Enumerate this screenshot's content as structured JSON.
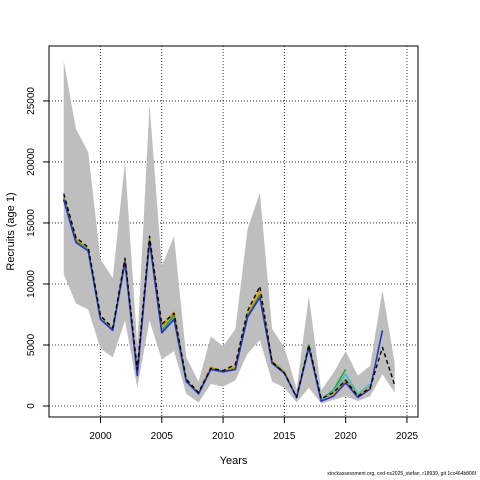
{
  "chart_data": {
    "type": "line",
    "xlabel": "Years",
    "ylabel": "Recruits (age 1)",
    "xlim": [
      1995.8,
      2025.9
    ],
    "ylim": [
      -900,
      29500
    ],
    "x_ticks": [
      2000,
      2005,
      2010,
      2015,
      2020,
      2025
    ],
    "y_ticks": [
      0,
      5000,
      10000,
      15000,
      20000,
      25000
    ],
    "grid": true,
    "grid_style": "dotted",
    "legend": "none",
    "colors": {
      "band": "#bebebe",
      "black": "#000000",
      "orange": "#e69f00",
      "olive": "#9a9a28",
      "green": "#2ca02c",
      "cyan": "#3fc0d8",
      "blue": "#3030c0"
    },
    "band": {
      "x": [
        1997,
        1998,
        1999,
        2000,
        2001,
        2002,
        2003,
        2004,
        2005,
        2006,
        2007,
        2008,
        2009,
        2010,
        2011,
        2012,
        2013,
        2014,
        2015,
        2016,
        2017,
        2018,
        2019,
        2020,
        2021,
        2022,
        2023,
        2024
      ],
      "upper": [
        28300,
        22700,
        20800,
        12000,
        10500,
        20000,
        5000,
        24700,
        11500,
        13900,
        4000,
        2000,
        5700,
        4900,
        6300,
        14500,
        17500,
        6300,
        4800,
        1400,
        9000,
        1300,
        2700,
        4500,
        2500,
        3300,
        9500,
        3500
      ],
      "lower": [
        10800,
        8400,
        7900,
        4700,
        4000,
        7000,
        1500,
        7000,
        3800,
        4500,
        1000,
        300,
        1800,
        1600,
        2100,
        4300,
        5400,
        2000,
        1500,
        300,
        1500,
        200,
        500,
        800,
        400,
        800,
        2600,
        1100
      ]
    },
    "series": [
      {
        "color": "black",
        "style": "dashed",
        "x": [
          1997,
          1998,
          1999,
          2000,
          2001,
          2002,
          2003,
          2004,
          2005,
          2006,
          2007,
          2008,
          2009,
          2010,
          2011,
          2012,
          2013,
          2014,
          2015,
          2016,
          2017,
          2018,
          2019,
          2020,
          2021,
          2022,
          2023,
          2024
        ],
        "values": [
          17400,
          13800,
          13000,
          7400,
          6400,
          12100,
          3000,
          13900,
          6700,
          7600,
          2200,
          1100,
          3100,
          2900,
          3400,
          7800,
          9800,
          3600,
          2700,
          700,
          5000,
          600,
          1100,
          2100,
          800,
          1500,
          4800,
          1700
        ]
      },
      {
        "color": "orange",
        "style": "solid",
        "x": [
          1997,
          1998,
          1999,
          2000,
          2001,
          2002,
          2003,
          2004,
          2005,
          2006,
          2007,
          2008,
          2009,
          2010,
          2011,
          2012,
          2013,
          2014,
          2015,
          2016,
          2017,
          2018,
          2019,
          2020,
          2021,
          2022
        ],
        "values": [
          17200,
          13700,
          12900,
          7300,
          6300,
          12000,
          2900,
          13800,
          6600,
          7700,
          2100,
          1100,
          3200,
          2800,
          3300,
          7600,
          9500,
          3700,
          2800,
          700,
          4900,
          500,
          1000,
          1900,
          900,
          1600
        ]
      },
      {
        "color": "olive",
        "style": "solid",
        "x": [
          1997,
          1998,
          1999,
          2000,
          2001,
          2002,
          2003,
          2004,
          2005,
          2006,
          2007,
          2008,
          2009,
          2010,
          2011,
          2012,
          2013,
          2014,
          2015,
          2016,
          2017,
          2018,
          2019,
          2020,
          2021
        ],
        "values": [
          17100,
          13600,
          12850,
          7250,
          6300,
          12000,
          2800,
          13700,
          6500,
          7600,
          2100,
          1050,
          3100,
          2850,
          3100,
          7500,
          9200,
          3650,
          2800,
          700,
          4950,
          500,
          1100,
          2200,
          900
        ]
      },
      {
        "color": "green",
        "style": "solid",
        "x": [
          1997,
          1998,
          1999,
          2000,
          2001,
          2002,
          2003,
          2004,
          2005,
          2006,
          2007,
          2008,
          2009,
          2010,
          2011,
          2012,
          2013,
          2014,
          2015,
          2016,
          2017,
          2018,
          2019,
          2020
        ],
        "values": [
          17000,
          13500,
          12800,
          7200,
          6250,
          11900,
          2700,
          13600,
          6200,
          7400,
          2050,
          1000,
          3050,
          2850,
          3000,
          7400,
          9000,
          3600,
          2750,
          700,
          5000,
          500,
          1300,
          3000
        ]
      },
      {
        "color": "cyan",
        "style": "solid",
        "x": [
          1997,
          1998,
          1999,
          2000,
          2001,
          2002,
          2003,
          2004,
          2005,
          2006,
          2007,
          2008,
          2009,
          2010,
          2011,
          2012,
          2013,
          2014,
          2015,
          2016,
          2017,
          2018,
          2019,
          2020,
          2021,
          2022
        ],
        "values": [
          16900,
          13400,
          12750,
          7150,
          6200,
          11800,
          2600,
          13500,
          6000,
          7200,
          2000,
          1000,
          3000,
          2800,
          3000,
          7300,
          8900,
          3500,
          2700,
          700,
          4800,
          450,
          1200,
          2600,
          1000,
          1800
        ]
      },
      {
        "color": "blue",
        "style": "solid",
        "x": [
          1997,
          1998,
          1999,
          2000,
          2001,
          2002,
          2003,
          2004,
          2005,
          2006,
          2007,
          2008,
          2009,
          2010,
          2011,
          2012,
          2013,
          2014,
          2015,
          2016,
          2017,
          2018,
          2019,
          2020,
          2021,
          2022,
          2023
        ],
        "values": [
          16900,
          13400,
          12700,
          7100,
          6200,
          11800,
          2500,
          13500,
          6000,
          7100,
          2000,
          1000,
          3000,
          2800,
          3000,
          7300,
          8900,
          3500,
          2700,
          700,
          4800,
          400,
          800,
          1900,
          700,
          1400,
          6200
        ]
      }
    ]
  },
  "caption": "stockassessment.org, cod-ns2025_stefan, r18939, git 1cc464b806f"
}
